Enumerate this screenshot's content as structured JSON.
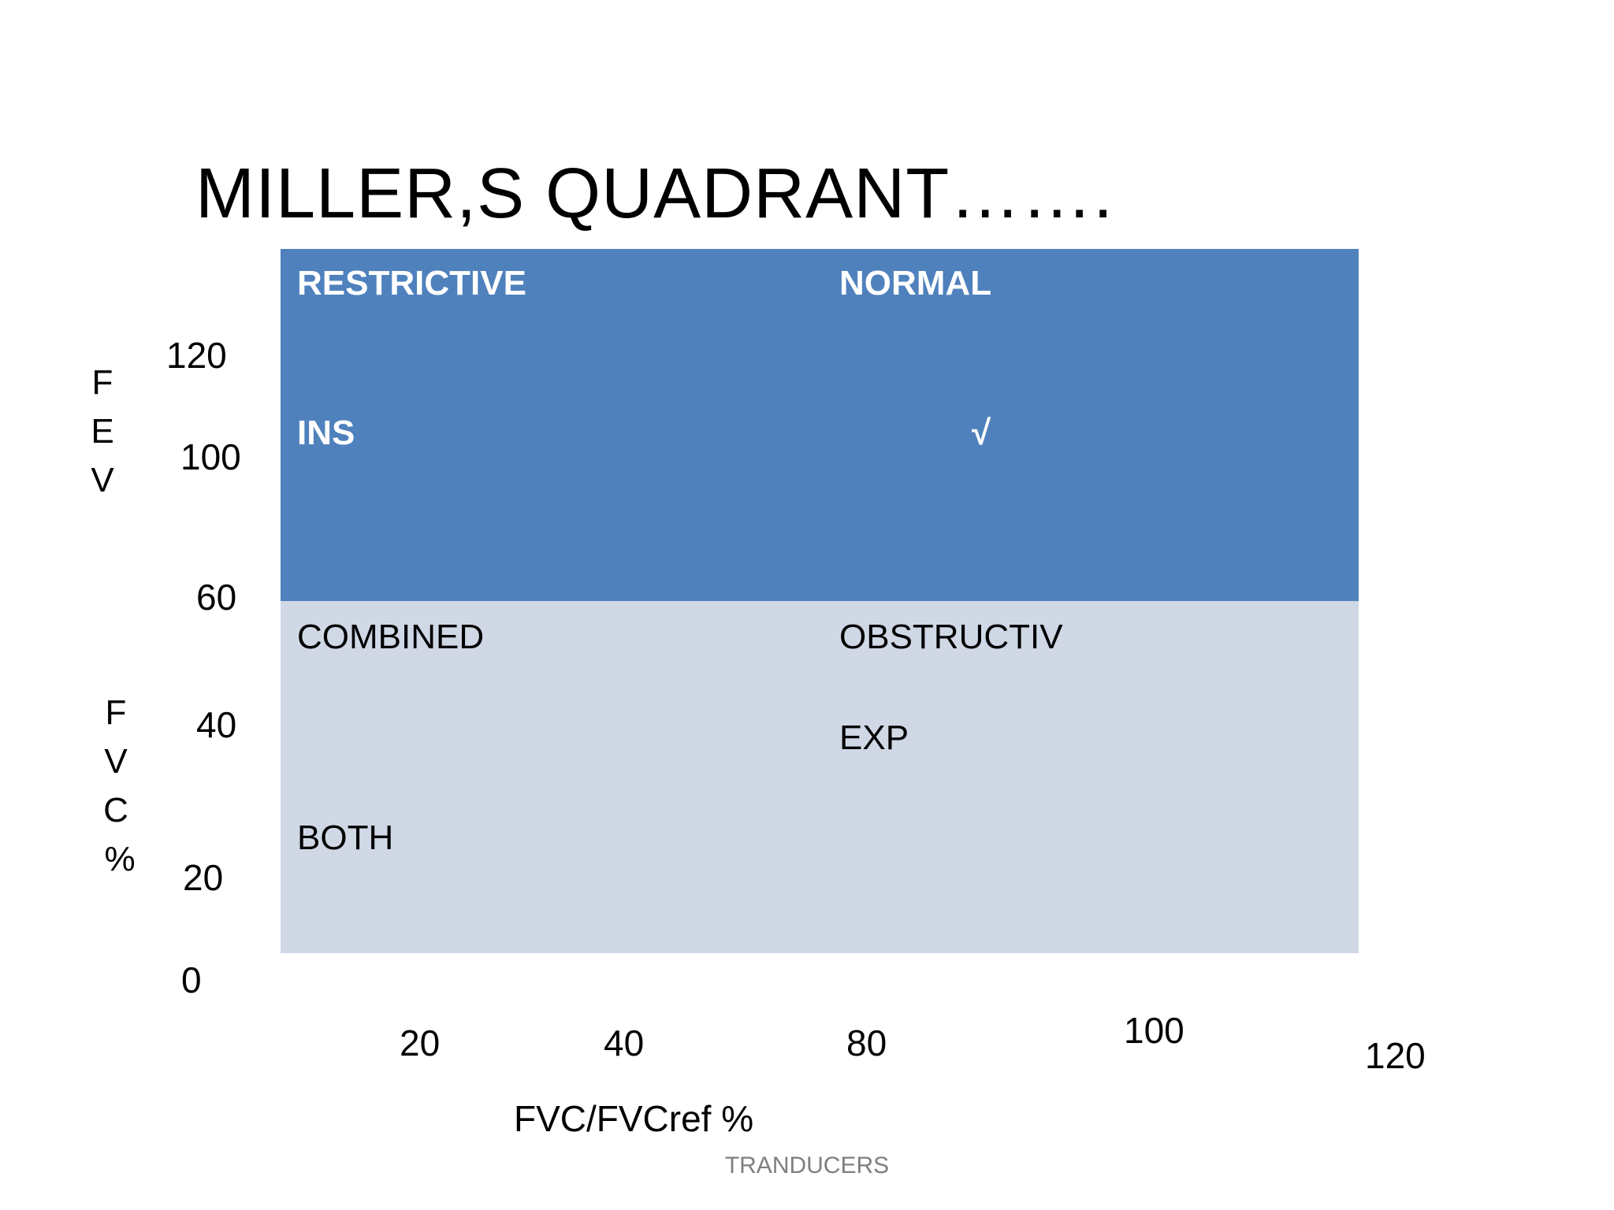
{
  "title": "MILLER,S QUADRANT…….",
  "colors": {
    "upper_fill": "#4f81bd",
    "lower_fill": "#d0d8e6",
    "upper_text": "#ffffff",
    "lower_text": "#000000",
    "footer_text": "#7f7f7f"
  },
  "quadrants": {
    "top_left": {
      "label": "RESTRICTIVE",
      "note": "INS"
    },
    "top_right": {
      "label": "NORMAL",
      "mark": "√"
    },
    "bottom_left": {
      "label": "COMBINED",
      "note": "BOTH"
    },
    "bottom_right": {
      "label": "OBSTRUCTIV",
      "note": "EXP"
    }
  },
  "y_axis": {
    "title_letters_top": [
      "F",
      "E",
      "V"
    ],
    "title_letters_bottom": [
      "F",
      "V",
      "C",
      "%"
    ],
    "ticks": [
      "120",
      "100",
      "60",
      "40",
      "20",
      "0"
    ]
  },
  "x_axis": {
    "title": "FVC/FVCref %",
    "ticks": [
      "20",
      "40",
      "80",
      "100",
      "120"
    ]
  },
  "footer": "TRANDUCERS"
}
